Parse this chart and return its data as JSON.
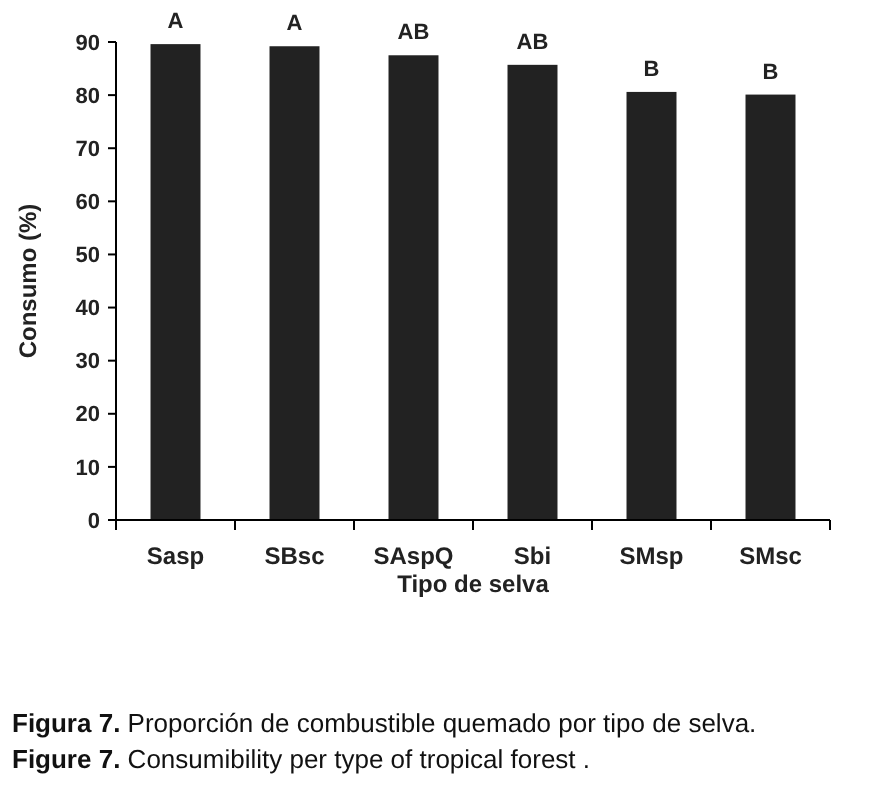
{
  "chart_data": {
    "type": "bar",
    "xlabel": "Tipo de selva",
    "ylabel": "Consumo (%)",
    "categories": [
      "Sasp",
      "SBsc",
      "SAspQ",
      "Sbi",
      "SMsp",
      "SMsc"
    ],
    "values": [
      89.6,
      89.2,
      87.5,
      85.7,
      80.6,
      80.1
    ],
    "color": "#222222",
    "ylim": [
      0,
      90
    ],
    "yticks": [
      0,
      10,
      20,
      30,
      40,
      50,
      60,
      70,
      80,
      90
    ],
    "grid": false,
    "annotations": [
      {
        "text": "A",
        "x": "Sasp",
        "y": 89.6
      },
      {
        "text": "A",
        "x": "SBsc",
        "y": 89.2
      },
      {
        "text": "AB",
        "x": "SAspQ",
        "y": 87.5
      },
      {
        "text": "AB",
        "x": "Sbi",
        "y": 85.7
      },
      {
        "text": "B",
        "x": "SMsp",
        "y": 80.6
      },
      {
        "text": "B",
        "x": "SMsc",
        "y": 80.1
      },
      "Figura 7. Proporción de combustible quemado por tipo de selva.",
      "Figure 7. Consumibility per type of tropical forest ."
    ]
  }
}
